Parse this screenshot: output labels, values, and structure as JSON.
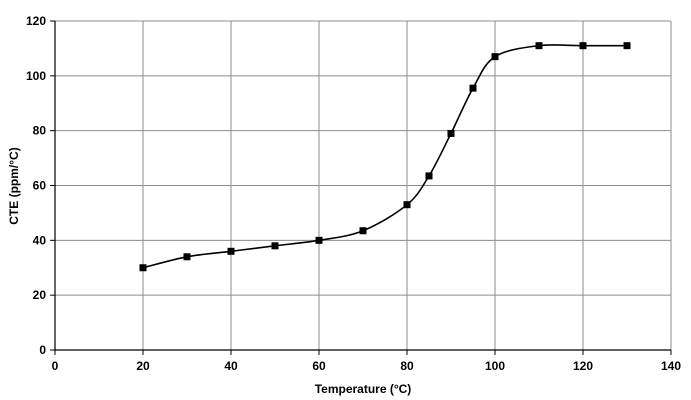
{
  "chart_data": {
    "type": "line",
    "title": "",
    "xlabel": "Temperature (°C)",
    "ylabel": "CTE (ppm/°C)",
    "xlim": [
      0,
      140
    ],
    "ylim": [
      0,
      120
    ],
    "x_ticks": [
      0,
      20,
      40,
      60,
      80,
      100,
      120,
      140
    ],
    "y_ticks": [
      0,
      20,
      40,
      60,
      80,
      100,
      120
    ],
    "grid": true,
    "legend": "none",
    "series": [
      {
        "marker": "square",
        "color": "#000000",
        "x": [
          20,
          30,
          40,
          50,
          60,
          70,
          80,
          85,
          90,
          95,
          100,
          110,
          120,
          130
        ],
        "y": [
          30,
          34,
          36,
          38,
          40,
          43.5,
          53,
          63.5,
          79,
          95.5,
          107,
          111,
          111,
          111
        ]
      }
    ]
  }
}
